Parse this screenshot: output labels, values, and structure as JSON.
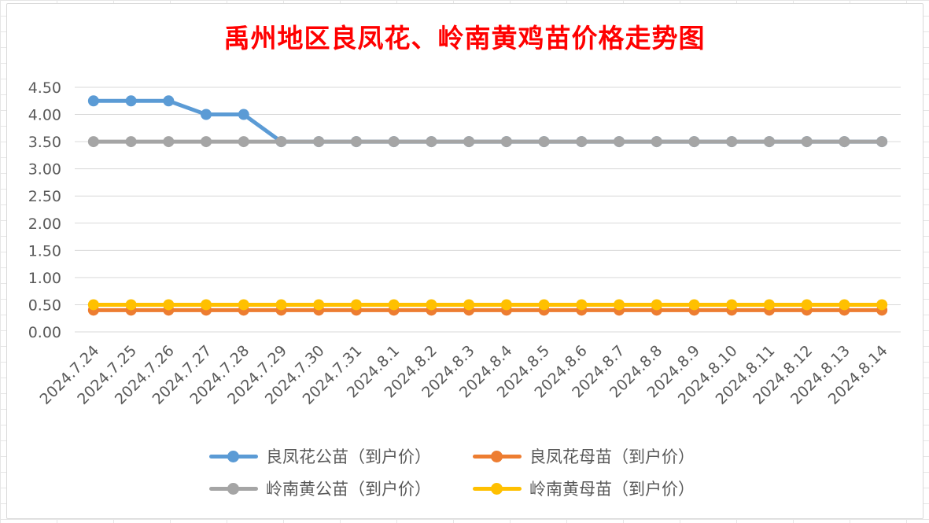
{
  "chart_data": {
    "type": "line",
    "title": "禹州地区良凤花、岭南黄鸡苗价格走势图",
    "xlabel": "",
    "ylabel": "",
    "ylim": [
      0,
      4.5
    ],
    "yticks": [
      "0.00",
      "0.50",
      "1.00",
      "1.50",
      "2.00",
      "2.50",
      "3.00",
      "3.50",
      "4.00",
      "4.50"
    ],
    "grid": true,
    "legend_position": "bottom",
    "categories": [
      "2024.7.24",
      "2024.7.25",
      "2024.7.26",
      "2024.7.27",
      "2024.7.28",
      "2024.7.29",
      "2024.7.30",
      "2024.7.31",
      "2024.8.1",
      "2024.8.2",
      "2024.8.3",
      "2024.8.4",
      "2024.8.5",
      "2024.8.6",
      "2024.8.7",
      "2024.8.8",
      "2024.8.9",
      "2024.8.10",
      "2024.8.11",
      "2024.8.12",
      "2024.8.13",
      "2024.8.14"
    ],
    "series": [
      {
        "name": "良凤花公苗（到户价）",
        "color": "#5b9bd5",
        "values": [
          4.25,
          4.25,
          4.25,
          4.0,
          4.0,
          3.5,
          3.5,
          3.5,
          3.5,
          3.5,
          3.5,
          3.5,
          3.5,
          3.5,
          3.5,
          3.5,
          3.5,
          3.5,
          3.5,
          3.5,
          3.5,
          3.5
        ]
      },
      {
        "name": "良凤花母苗（到户价）",
        "color": "#ed7d31",
        "values": [
          0.4,
          0.4,
          0.4,
          0.4,
          0.4,
          0.4,
          0.4,
          0.4,
          0.4,
          0.4,
          0.4,
          0.4,
          0.4,
          0.4,
          0.4,
          0.4,
          0.4,
          0.4,
          0.4,
          0.4,
          0.4,
          0.4
        ]
      },
      {
        "name": "岭南黄公苗（到户价）",
        "color": "#a5a5a5",
        "values": [
          3.5,
          3.5,
          3.5,
          3.5,
          3.5,
          3.5,
          3.5,
          3.5,
          3.5,
          3.5,
          3.5,
          3.5,
          3.5,
          3.5,
          3.5,
          3.5,
          3.5,
          3.5,
          3.5,
          3.5,
          3.5,
          3.5
        ]
      },
      {
        "name": "岭南黄母苗（到户价）",
        "color": "#ffc000",
        "values": [
          0.5,
          0.5,
          0.5,
          0.5,
          0.5,
          0.5,
          0.5,
          0.5,
          0.5,
          0.5,
          0.5,
          0.5,
          0.5,
          0.5,
          0.5,
          0.5,
          0.5,
          0.5,
          0.5,
          0.5,
          0.5,
          0.5
        ]
      }
    ]
  }
}
